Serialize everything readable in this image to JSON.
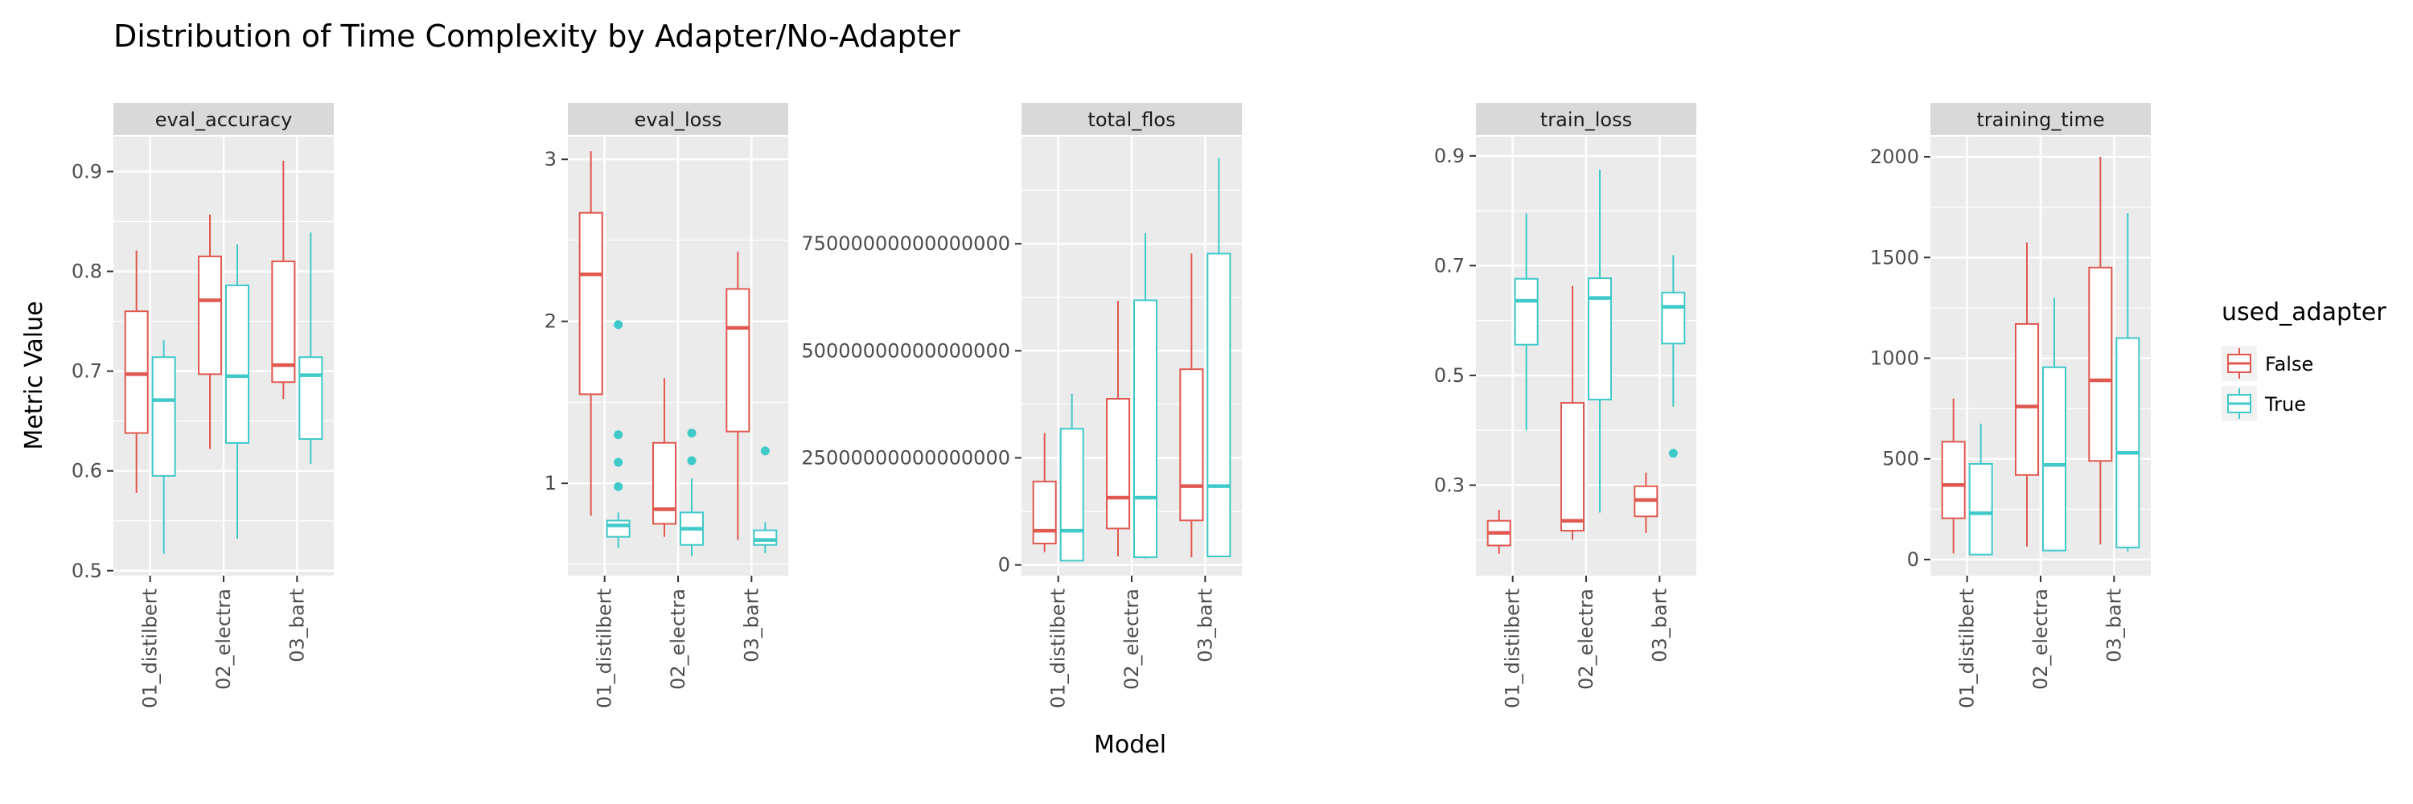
{
  "chart_data": {
    "type": "box",
    "title": "Distribution of Time Complexity by Adapter/No-Adapter",
    "xlabel": "Model",
    "ylabel": "Metric Value",
    "categories": [
      "01_distilbert",
      "02_electra",
      "03_bart"
    ],
    "grid": true,
    "legend": {
      "title": "used_adapter",
      "position": "right",
      "entries": [
        {
          "name": "False",
          "color": "#e0584f"
        },
        {
          "name": "True",
          "color": "#40c9c9"
        }
      ]
    },
    "facets": [
      {
        "name": "eval_accuracy",
        "ylim": [
          0.495,
          0.935
        ],
        "yticks": [
          0.5,
          0.6,
          0.7,
          0.8,
          0.9
        ],
        "ytick_labels": [
          "0.5",
          "0.6",
          "0.7",
          "0.8",
          "0.9"
        ],
        "boxes": [
          {
            "category": "01_distilbert",
            "group": "False",
            "whisker_low": 0.578,
            "q1": 0.638,
            "median": 0.697,
            "q3": 0.76,
            "whisker_high": 0.821,
            "outliers": []
          },
          {
            "category": "01_distilbert",
            "group": "True",
            "whisker_low": 0.517,
            "q1": 0.595,
            "median": 0.671,
            "q3": 0.714,
            "whisker_high": 0.731,
            "outliers": []
          },
          {
            "category": "02_electra",
            "group": "False",
            "whisker_low": 0.622,
            "q1": 0.697,
            "median": 0.771,
            "q3": 0.815,
            "whisker_high": 0.857,
            "outliers": []
          },
          {
            "category": "02_electra",
            "group": "True",
            "whisker_low": 0.532,
            "q1": 0.628,
            "median": 0.695,
            "q3": 0.786,
            "whisker_high": 0.827,
            "outliers": []
          },
          {
            "category": "03_bart",
            "group": "False",
            "whisker_low": 0.672,
            "q1": 0.689,
            "median": 0.706,
            "q3": 0.81,
            "whisker_high": 0.911,
            "outliers": []
          },
          {
            "category": "03_bart",
            "group": "True",
            "whisker_low": 0.607,
            "q1": 0.632,
            "median": 0.696,
            "q3": 0.714,
            "whisker_high": 0.839,
            "outliers": []
          }
        ]
      },
      {
        "name": "eval_loss",
        "ylim": [
          0.43,
          3.14
        ],
        "yticks": [
          1,
          2,
          3
        ],
        "ytick_labels": [
          "1",
          "2",
          "3"
        ],
        "boxes": [
          {
            "category": "01_distilbert",
            "group": "False",
            "whisker_low": 0.8,
            "q1": 1.55,
            "median": 2.29,
            "q3": 2.67,
            "whisker_high": 3.05,
            "outliers": []
          },
          {
            "category": "01_distilbert",
            "group": "True",
            "whisker_low": 0.6,
            "q1": 0.67,
            "median": 0.74,
            "q3": 0.77,
            "whisker_high": 0.82,
            "outliers": [
              0.98,
              1.13,
              1.3,
              1.98
            ]
          },
          {
            "category": "02_electra",
            "group": "False",
            "whisker_low": 0.67,
            "q1": 0.75,
            "median": 0.84,
            "q3": 1.25,
            "whisker_high": 1.65,
            "outliers": []
          },
          {
            "category": "02_electra",
            "group": "True",
            "whisker_low": 0.55,
            "q1": 0.62,
            "median": 0.72,
            "q3": 0.82,
            "whisker_high": 1.03,
            "outliers": [
              1.14,
              1.31
            ]
          },
          {
            "category": "03_bart",
            "group": "False",
            "whisker_low": 0.65,
            "q1": 1.32,
            "median": 1.96,
            "q3": 2.2,
            "whisker_high": 2.43,
            "outliers": []
          },
          {
            "category": "03_bart",
            "group": "True",
            "whisker_low": 0.57,
            "q1": 0.62,
            "median": 0.65,
            "q3": 0.71,
            "whisker_high": 0.76,
            "outliers": [
              1.2
            ]
          }
        ]
      },
      {
        "name": "total_flos",
        "ylim": [
          -2500000000000000.0,
          1e+17
        ],
        "yticks": [
          0,
          2.5e+16,
          5e+16,
          7.5e+16
        ],
        "ytick_labels": [
          "0",
          "25000000000000000",
          "50000000000000000",
          "75000000000000000"
        ],
        "boxes": [
          {
            "category": "01_distilbert",
            "group": "False",
            "whisker_low": 3000000000000000.0,
            "q1": 5000000000000000.0,
            "median": 8000000000000000.0,
            "q3": 1.95e+16,
            "whisker_high": 3.08e+16,
            "outliers": []
          },
          {
            "category": "01_distilbert",
            "group": "True",
            "whisker_low": 800000000000000.0,
            "q1": 1000000000000000.0,
            "median": 8000000000000000.0,
            "q3": 3.18e+16,
            "whisker_high": 4e+16,
            "outliers": []
          },
          {
            "category": "02_electra",
            "group": "False",
            "whisker_low": 2000000000000000.0,
            "q1": 8500000000000000.0,
            "median": 1.57e+16,
            "q3": 3.88e+16,
            "whisker_high": 6.17e+16,
            "outliers": []
          },
          {
            "category": "02_electra",
            "group": "True",
            "whisker_low": 1500000000000000.0,
            "q1": 1800000000000000.0,
            "median": 1.57e+16,
            "q3": 6.18e+16,
            "whisker_high": 7.75e+16,
            "outliers": []
          },
          {
            "category": "03_bart",
            "group": "False",
            "whisker_low": 1800000000000000.0,
            "q1": 1.04e+16,
            "median": 1.84e+16,
            "q3": 4.57e+16,
            "whisker_high": 7.27e+16,
            "outliers": []
          },
          {
            "category": "03_bart",
            "group": "True",
            "whisker_low": 1800000000000000.0,
            "q1": 2000000000000000.0,
            "median": 1.84e+16,
            "q3": 7.27e+16,
            "whisker_high": 9.5e+16,
            "outliers": []
          }
        ]
      },
      {
        "name": "train_loss",
        "ylim": [
          0.135,
          0.935
        ],
        "yticks": [
          0.3,
          0.5,
          0.7,
          0.9
        ],
        "ytick_labels": [
          "0.3",
          "0.5",
          "0.7",
          "0.9"
        ],
        "boxes": [
          {
            "category": "01_distilbert",
            "group": "False",
            "whisker_low": 0.175,
            "q1": 0.19,
            "median": 0.213,
            "q3": 0.235,
            "whisker_high": 0.255,
            "outliers": []
          },
          {
            "category": "01_distilbert",
            "group": "True",
            "whisker_low": 0.4,
            "q1": 0.556,
            "median": 0.636,
            "q3": 0.676,
            "whisker_high": 0.795,
            "outliers": []
          },
          {
            "category": "02_electra",
            "group": "False",
            "whisker_low": 0.2,
            "q1": 0.217,
            "median": 0.235,
            "q3": 0.45,
            "whisker_high": 0.663,
            "outliers": []
          },
          {
            "category": "02_electra",
            "group": "True",
            "whisker_low": 0.25,
            "q1": 0.456,
            "median": 0.641,
            "q3": 0.677,
            "whisker_high": 0.875,
            "outliers": []
          },
          {
            "category": "03_bart",
            "group": "False",
            "whisker_low": 0.213,
            "q1": 0.243,
            "median": 0.273,
            "q3": 0.298,
            "whisker_high": 0.323,
            "outliers": []
          },
          {
            "category": "03_bart",
            "group": "True",
            "whisker_low": 0.443,
            "q1": 0.558,
            "median": 0.625,
            "q3": 0.651,
            "whisker_high": 0.719,
            "outliers": [
              0.358
            ]
          }
        ]
      },
      {
        "name": "training_time",
        "ylim": [
          -80,
          2100
        ],
        "yticks": [
          0,
          500,
          1000,
          1500,
          2000
        ],
        "ytick_labels": [
          "0",
          "500",
          "1000",
          "1500",
          "2000"
        ],
        "boxes": [
          {
            "category": "01_distilbert",
            "group": "False",
            "whisker_low": 30,
            "q1": 205,
            "median": 370,
            "q3": 585,
            "whisker_high": 800,
            "outliers": []
          },
          {
            "category": "01_distilbert",
            "group": "True",
            "whisker_low": 20,
            "q1": 25,
            "median": 230,
            "q3": 475,
            "whisker_high": 675,
            "outliers": []
          },
          {
            "category": "02_electra",
            "group": "False",
            "whisker_low": 65,
            "q1": 420,
            "median": 760,
            "q3": 1170,
            "whisker_high": 1575,
            "outliers": []
          },
          {
            "category": "02_electra",
            "group": "True",
            "whisker_low": 40,
            "q1": 45,
            "median": 470,
            "q3": 955,
            "whisker_high": 1300,
            "outliers": []
          },
          {
            "category": "03_bart",
            "group": "False",
            "whisker_low": 75,
            "q1": 490,
            "median": 890,
            "q3": 1450,
            "whisker_high": 2000,
            "outliers": []
          },
          {
            "category": "03_bart",
            "group": "True",
            "whisker_low": 40,
            "q1": 60,
            "median": 530,
            "q3": 1100,
            "whisker_high": 1720,
            "outliers": []
          }
        ]
      }
    ]
  }
}
